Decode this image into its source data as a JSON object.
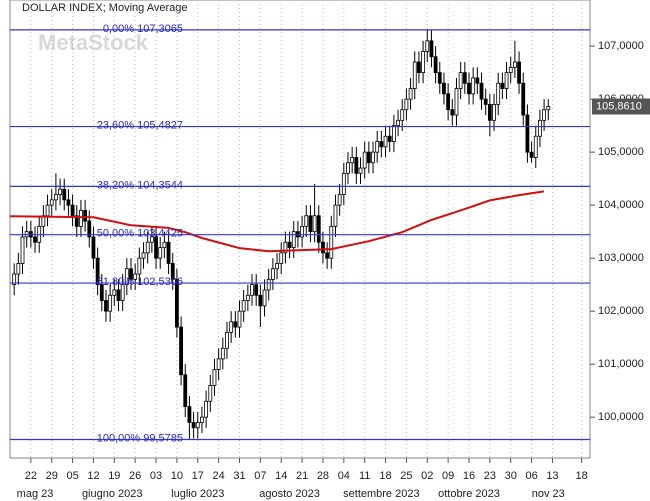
{
  "chart_data": {
    "type": "candlestick",
    "title": "DOLLAR INDEX; Moving Average",
    "watermark": "MetaStock",
    "ylim": [
      99.23,
      107.87
    ],
    "xlim": [
      -1,
      138
    ],
    "yticks": [
      {
        "value": 100,
        "label": "100,0000"
      },
      {
        "value": 101,
        "label": "101,0000"
      },
      {
        "value": 102,
        "label": "102,0000"
      },
      {
        "value": 103,
        "label": "103,0000"
      },
      {
        "value": 104,
        "label": "104,0000"
      },
      {
        "value": 105,
        "label": "105,0000"
      },
      {
        "value": 106,
        "label": "106,0000"
      },
      {
        "value": 107,
        "label": "107,0000"
      }
    ],
    "xticks": [
      {
        "value": 4,
        "label": "22"
      },
      {
        "value": 9,
        "label": "29"
      },
      {
        "value": 14,
        "label": "05"
      },
      {
        "value": 19,
        "label": "12"
      },
      {
        "value": 24,
        "label": "19"
      },
      {
        "value": 29,
        "label": "26"
      },
      {
        "value": 34,
        "label": "03"
      },
      {
        "value": 39,
        "label": "10"
      },
      {
        "value": 44,
        "label": "17"
      },
      {
        "value": 49,
        "label": "24"
      },
      {
        "value": 54,
        "label": "31"
      },
      {
        "value": 59,
        "label": "07"
      },
      {
        "value": 64,
        "label": "14"
      },
      {
        "value": 69,
        "label": "21"
      },
      {
        "value": 74,
        "label": "28"
      },
      {
        "value": 79,
        "label": "04"
      },
      {
        "value": 84,
        "label": "11"
      },
      {
        "value": 89,
        "label": "18"
      },
      {
        "value": 94,
        "label": "25"
      },
      {
        "value": 99,
        "label": "02"
      },
      {
        "value": 104,
        "label": "09"
      },
      {
        "value": 109,
        "label": "16"
      },
      {
        "value": 114,
        "label": "23"
      },
      {
        "value": 119,
        "label": "30"
      },
      {
        "value": 124,
        "label": "06"
      },
      {
        "value": 129,
        "label": "13"
      },
      {
        "value": 136,
        "label": "18"
      }
    ],
    "month_ticks": [
      {
        "value": 5,
        "label": "mag 23"
      },
      {
        "value": 23.5,
        "label": "giugno 2023"
      },
      {
        "value": 44,
        "label": "luglio 2023"
      },
      {
        "value": 66,
        "label": "agosto 2023"
      },
      {
        "value": 88,
        "label": "settembre 2023"
      },
      {
        "value": 109,
        "label": "ottobre 2023"
      },
      {
        "value": 128,
        "label": "nov 23"
      }
    ],
    "grid": true,
    "last_price": {
      "value": 105.861,
      "label": "105,8610"
    },
    "levels": [
      {
        "label": "0,00% 107,3065",
        "value": 107.3065
      },
      {
        "label": "23,60% 105,4827",
        "value": 105.4827
      },
      {
        "label": "38,20% 104,3544",
        "value": 104.3544
      },
      {
        "label": "50,00% 103,4425",
        "value": 103.4425
      },
      {
        "label": "61,80% 102,5306",
        "value": 102.5306
      },
      {
        "label": "100,00% 99,5785",
        "value": 99.5785
      }
    ],
    "level_color": "#3434d0",
    "moving_average": {
      "color": "#d01010",
      "x": [
        -1,
        19,
        28,
        37,
        41,
        45,
        54,
        61,
        68,
        76,
        85,
        93,
        100,
        107,
        114,
        121,
        127
      ],
      "values": [
        103.79,
        103.77,
        103.62,
        103.57,
        103.49,
        103.38,
        103.19,
        103.13,
        103.15,
        103.17,
        103.32,
        103.49,
        103.72,
        103.9,
        104.09,
        104.19,
        104.26
      ]
    },
    "up_color": "#ffffff",
    "down_color": "#000000",
    "candles": [
      [
        102.5,
        102.9,
        102.3,
        102.7
      ],
      [
        102.7,
        103.1,
        102.5,
        102.9
      ],
      [
        102.9,
        103.6,
        102.7,
        103.4
      ],
      [
        103.4,
        103.7,
        103.2,
        103.5
      ],
      [
        103.5,
        103.7,
        103.2,
        103.4
      ],
      [
        103.4,
        103.6,
        103.1,
        103.3
      ],
      [
        103.3,
        103.8,
        103.1,
        103.6
      ],
      [
        103.6,
        104.0,
        103.4,
        103.8
      ],
      [
        103.8,
        104.2,
        103.6,
        104.0
      ],
      [
        104.0,
        104.3,
        103.8,
        104.1
      ],
      [
        104.1,
        104.6,
        103.9,
        104.2
      ],
      [
        104.2,
        104.5,
        104.0,
        104.3
      ],
      [
        104.3,
        104.5,
        103.9,
        104.1
      ],
      [
        104.1,
        104.3,
        103.8,
        104.0
      ],
      [
        104.0,
        104.2,
        103.6,
        103.8
      ],
      [
        103.8,
        104.0,
        103.4,
        103.6
      ],
      [
        103.6,
        104.1,
        103.4,
        103.9
      ],
      [
        103.9,
        104.1,
        103.5,
        103.7
      ],
      [
        103.7,
        103.9,
        103.2,
        103.4
      ],
      [
        103.4,
        103.6,
        102.8,
        103.0
      ],
      [
        103.0,
        103.2,
        102.3,
        102.5
      ],
      [
        102.5,
        102.7,
        102.0,
        102.2
      ],
      [
        102.2,
        102.4,
        101.8,
        102.0
      ],
      [
        102.0,
        102.5,
        101.8,
        102.3
      ],
      [
        102.3,
        102.6,
        102.1,
        102.4
      ],
      [
        102.4,
        102.6,
        102.0,
        102.2
      ],
      [
        102.2,
        102.7,
        102.0,
        102.5
      ],
      [
        102.5,
        103.0,
        102.3,
        102.8
      ],
      [
        102.8,
        103.0,
        102.4,
        102.6
      ],
      [
        102.6,
        102.9,
        102.4,
        102.7
      ],
      [
        102.7,
        103.2,
        102.5,
        103.0
      ],
      [
        103.0,
        103.3,
        102.8,
        103.1
      ],
      [
        103.1,
        103.5,
        102.9,
        103.3
      ],
      [
        103.3,
        103.6,
        103.1,
        103.4
      ],
      [
        103.4,
        103.6,
        102.8,
        103.0
      ],
      [
        103.0,
        103.4,
        102.8,
        103.2
      ],
      [
        103.2,
        103.5,
        103.0,
        103.3
      ],
      [
        103.3,
        103.5,
        102.7,
        102.9
      ],
      [
        102.9,
        103.1,
        102.4,
        102.6
      ],
      [
        102.6,
        102.8,
        101.5,
        101.7
      ],
      [
        101.7,
        101.9,
        100.6,
        100.8
      ],
      [
        100.8,
        101.0,
        100.0,
        100.2
      ],
      [
        100.2,
        100.4,
        99.5785,
        99.9
      ],
      [
        99.9,
        100.1,
        99.6,
        99.8
      ],
      [
        99.8,
        100.1,
        99.6,
        99.9
      ],
      [
        99.9,
        100.2,
        99.7,
        100.0
      ],
      [
        100.0,
        100.5,
        99.8,
        100.3
      ],
      [
        100.3,
        100.8,
        100.1,
        100.6
      ],
      [
        100.6,
        101.1,
        100.4,
        100.9
      ],
      [
        100.9,
        101.3,
        100.7,
        101.1
      ],
      [
        101.1,
        101.5,
        100.9,
        101.3
      ],
      [
        101.3,
        101.8,
        101.1,
        101.6
      ],
      [
        101.6,
        102.0,
        101.4,
        101.8
      ],
      [
        101.8,
        102.0,
        101.5,
        101.7
      ],
      [
        101.7,
        102.2,
        101.5,
        102.0
      ],
      [
        102.0,
        102.4,
        101.8,
        102.2
      ],
      [
        102.2,
        102.5,
        102.0,
        102.3
      ],
      [
        102.3,
        102.7,
        102.1,
        102.5
      ],
      [
        102.5,
        102.7,
        102.1,
        102.3
      ],
      [
        102.3,
        102.5,
        101.7,
        102.1
      ],
      [
        102.1,
        102.6,
        101.9,
        102.4
      ],
      [
        102.4,
        102.8,
        102.2,
        102.6
      ],
      [
        102.6,
        103.0,
        102.4,
        102.8
      ],
      [
        102.8,
        103.1,
        102.6,
        102.9
      ],
      [
        102.9,
        103.3,
        102.7,
        103.1
      ],
      [
        103.1,
        103.5,
        102.9,
        103.3
      ],
      [
        103.3,
        103.5,
        103.0,
        103.2
      ],
      [
        103.2,
        103.7,
        103.0,
        103.5
      ],
      [
        103.5,
        103.7,
        103.2,
        103.4
      ],
      [
        103.4,
        103.8,
        103.2,
        103.6
      ],
      [
        103.6,
        104.0,
        103.4,
        103.8
      ],
      [
        103.8,
        104.0,
        103.3,
        103.5
      ],
      [
        103.5,
        104.4,
        103.3,
        103.8
      ],
      [
        103.8,
        104.0,
        103.1,
        103.3
      ],
      [
        103.3,
        103.5,
        102.9,
        103.1
      ],
      [
        103.1,
        103.3,
        102.8,
        103.0
      ],
      [
        103.0,
        103.8,
        102.8,
        103.6
      ],
      [
        103.6,
        104.2,
        103.4,
        104.0
      ],
      [
        104.0,
        104.4,
        103.8,
        104.2
      ],
      [
        104.2,
        104.8,
        104.0,
        104.6
      ],
      [
        104.6,
        105.0,
        104.4,
        104.8
      ],
      [
        104.8,
        105.1,
        104.6,
        104.9
      ],
      [
        104.9,
        105.1,
        104.4,
        104.6
      ],
      [
        104.6,
        104.9,
        104.4,
        104.7
      ],
      [
        104.7,
        105.2,
        104.5,
        105.0
      ],
      [
        105.0,
        105.2,
        104.6,
        104.8
      ],
      [
        104.8,
        105.2,
        104.6,
        105.0
      ],
      [
        105.0,
        105.4,
        104.8,
        105.2
      ],
      [
        105.2,
        105.4,
        104.9,
        105.1
      ],
      [
        105.1,
        105.5,
        104.9,
        105.3
      ],
      [
        105.3,
        105.5,
        105.0,
        105.2
      ],
      [
        105.2,
        105.7,
        105.0,
        105.5
      ],
      [
        105.5,
        105.8,
        105.3,
        105.6
      ],
      [
        105.6,
        106.0,
        105.4,
        105.8
      ],
      [
        105.8,
        106.2,
        105.6,
        106.0
      ],
      [
        106.0,
        106.4,
        105.8,
        106.2
      ],
      [
        106.2,
        106.9,
        106.0,
        106.7
      ],
      [
        106.7,
        106.9,
        106.3,
        106.5
      ],
      [
        106.5,
        107.1,
        106.3,
        106.9
      ],
      [
        106.9,
        107.3065,
        106.7,
        107.1
      ],
      [
        107.1,
        107.3,
        106.6,
        106.8
      ],
      [
        106.8,
        107.0,
        106.3,
        106.5
      ],
      [
        106.5,
        106.7,
        106.1,
        106.3
      ],
      [
        106.3,
        106.5,
        105.9,
        106.1
      ],
      [
        106.1,
        106.3,
        105.6,
        105.8
      ],
      [
        105.8,
        106.0,
        105.5,
        105.7
      ],
      [
        105.7,
        106.4,
        105.5,
        106.2
      ],
      [
        106.2,
        106.7,
        106.0,
        106.5
      ],
      [
        106.5,
        106.7,
        106.1,
        106.3
      ],
      [
        106.3,
        106.5,
        105.9,
        106.1
      ],
      [
        106.1,
        106.6,
        105.9,
        106.4
      ],
      [
        106.4,
        106.6,
        106.1,
        106.3
      ],
      [
        106.3,
        106.5,
        105.8,
        106.0
      ],
      [
        106.0,
        106.2,
        105.7,
        105.9
      ],
      [
        105.9,
        106.1,
        105.3,
        105.6
      ],
      [
        105.6,
        106.1,
        105.4,
        105.9
      ],
      [
        105.9,
        106.5,
        105.7,
        106.3
      ],
      [
        106.3,
        106.5,
        106.0,
        106.2
      ],
      [
        106.2,
        106.7,
        106.0,
        106.5
      ],
      [
        106.5,
        106.8,
        106.3,
        106.6
      ],
      [
        106.6,
        107.1,
        106.4,
        106.7
      ],
      [
        106.7,
        106.9,
        106.1,
        106.3
      ],
      [
        106.3,
        106.5,
        105.5,
        105.7
      ],
      [
        105.7,
        105.9,
        104.8,
        105.0
      ],
      [
        105.0,
        105.2,
        104.8,
        104.9
      ],
      [
        104.9,
        105.5,
        104.7,
        105.3
      ],
      [
        105.3,
        105.8,
        105.1,
        105.6
      ],
      [
        105.6,
        106.0,
        105.4,
        105.8
      ],
      [
        105.8,
        106.0,
        105.6,
        105.861
      ]
    ]
  }
}
